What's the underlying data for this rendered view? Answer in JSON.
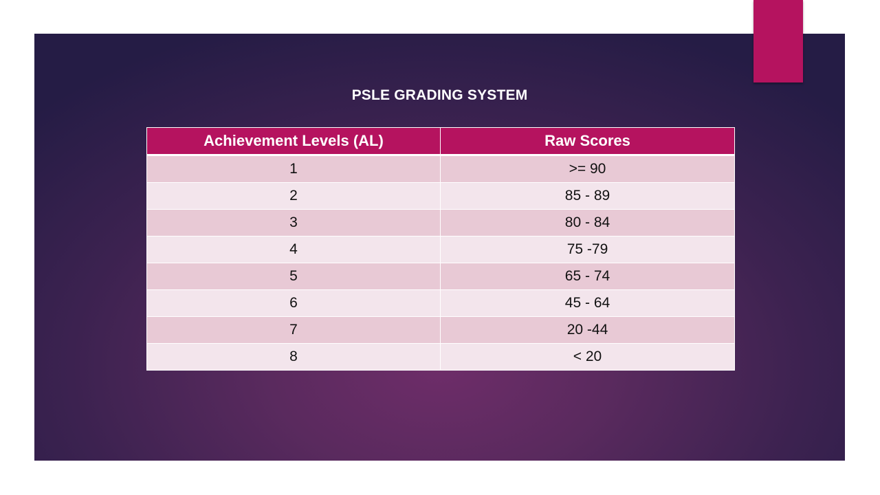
{
  "slide": {
    "title": "PSLE GRADING SYSTEM"
  },
  "table": {
    "headers": [
      "Achievement Levels (AL)",
      "Raw Scores"
    ],
    "rows": [
      {
        "al": "1",
        "score": ">= 90"
      },
      {
        "al": "2",
        "score": "85 - 89"
      },
      {
        "al": "3",
        "score": "80 - 84"
      },
      {
        "al": "4",
        "score": "75 -79"
      },
      {
        "al": "5",
        "score": "65 - 74"
      },
      {
        "al": "6",
        "score": "45 - 64"
      },
      {
        "al": "7",
        "score": "20 -44"
      },
      {
        "al": "8",
        "score": "< 20"
      }
    ]
  },
  "colors": {
    "accent": "#b5135f",
    "row_dark": "#e8c9d5",
    "row_light": "#f3e5ec",
    "background_center": "#6e2d69",
    "background_edge": "#251c45"
  }
}
